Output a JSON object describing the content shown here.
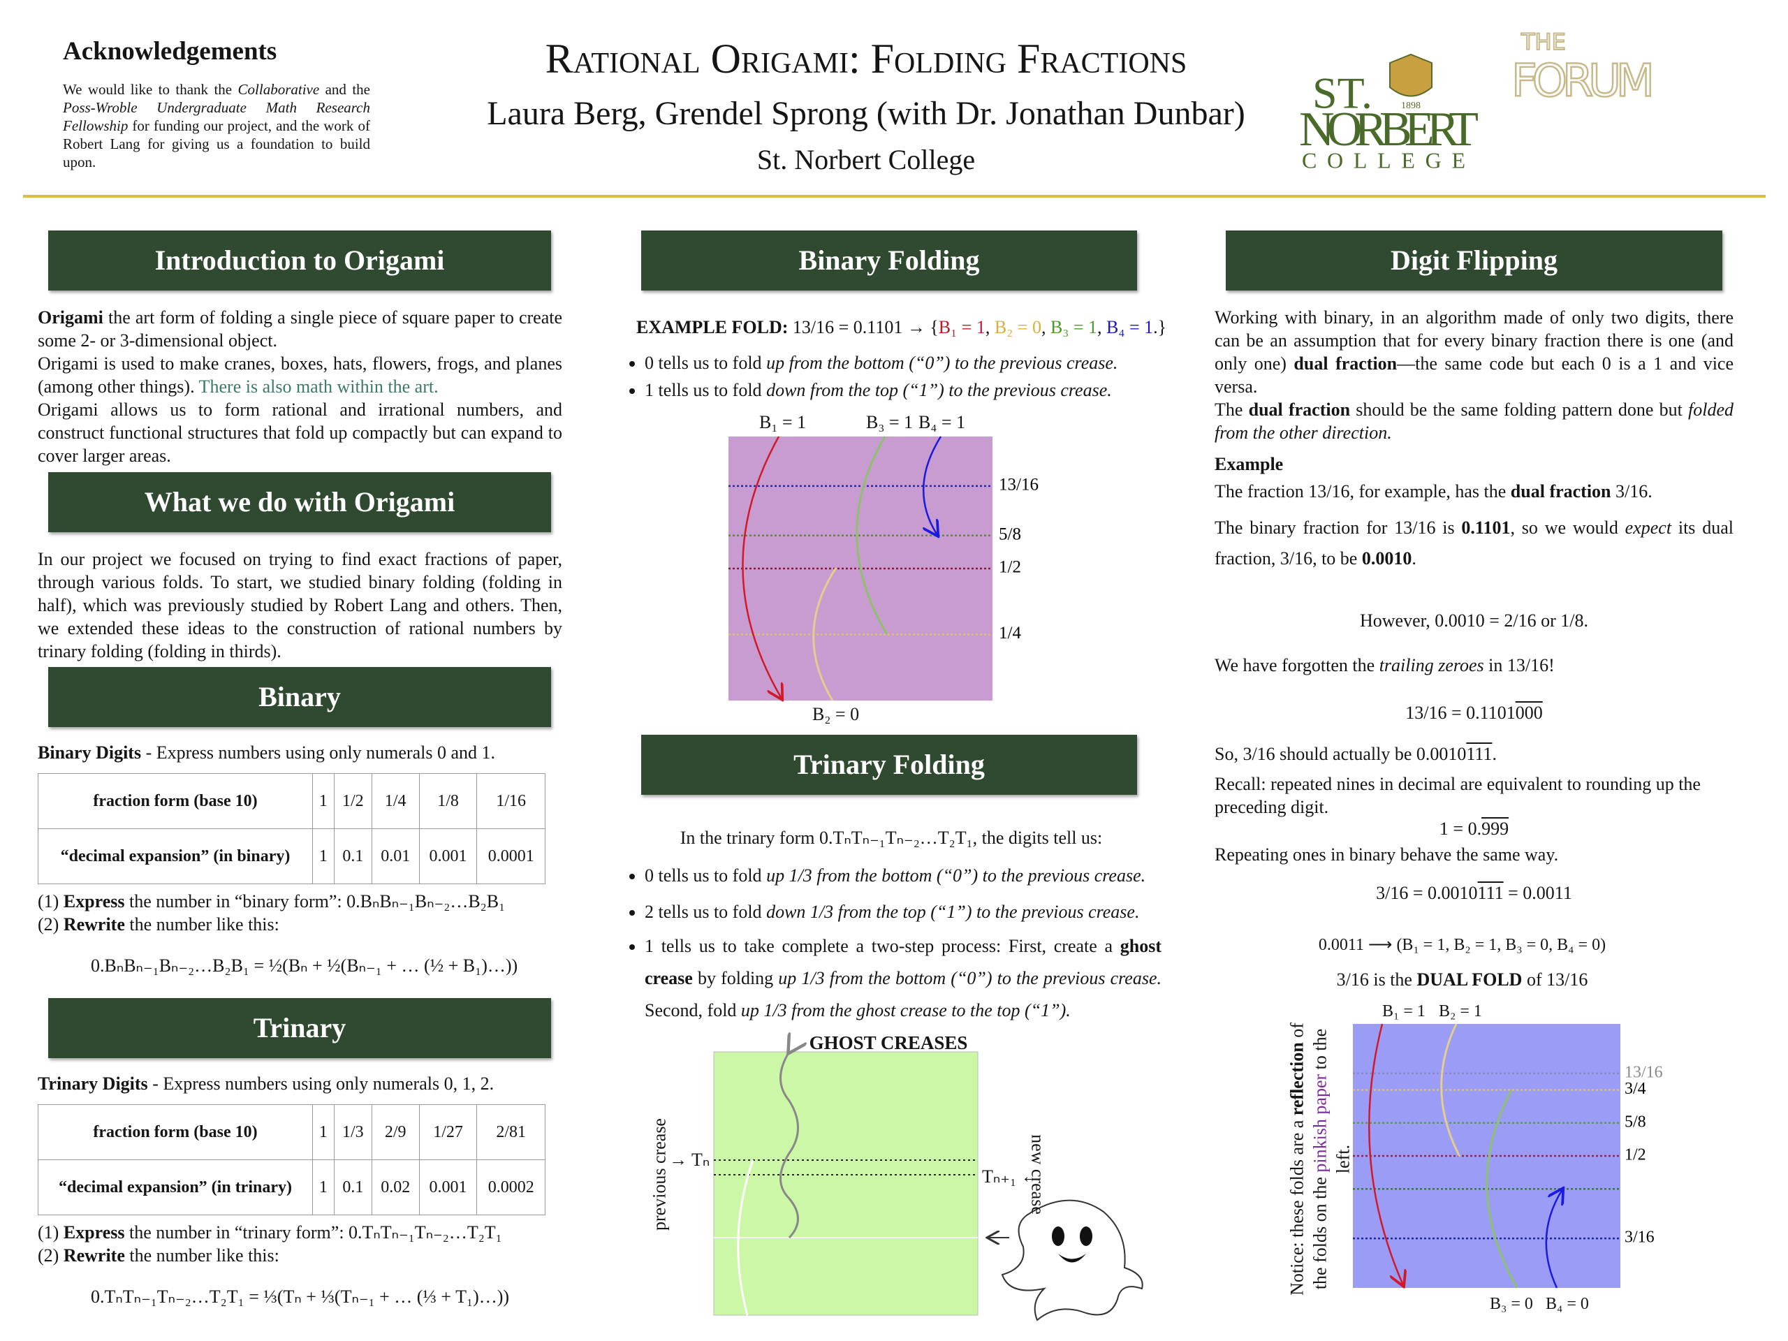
{
  "header": {
    "ack_title": "Acknowledgements",
    "ack_text": [
      "We would like to thank the ",
      "Collaborative",
      " and the ",
      "Poss-Wroble Undergraduate Math Research Fellowship",
      " for funding our project, and the work of Robert Lang for giving us a foundation to build upon."
    ],
    "title": "Rational Origami: Folding Fractions",
    "authors": "Laura Berg, Grendel Sprong (with Dr. Jonathan Dunbar)",
    "college": "St. Norbert College",
    "logo": {
      "st": "ST.",
      "norbert": "NORBERT",
      "college": "COLLEGE",
      "year": "1898",
      "forum_the": "THE",
      "forum": "FORUM"
    }
  },
  "intro": {
    "heading": "Introduction to Origami",
    "p1_bold": "Origami",
    "p1": " the art form of folding a single piece of square paper to create some 2- or 3-dimensional object.",
    "p2": "Origami is used to make cranes, boxes, hats, flowers, frogs, and planes (among other things). ",
    "p2_highlight": "There is also math within the art.",
    "p3": "Origami allows us to form rational and irrational numbers, and construct functional structures that fold up compactly but can expand to cover larger areas."
  },
  "what": {
    "heading": "What we do with Origami",
    "text": "In our project we focused on trying to find exact fractions of paper, through various folds. To start, we studied binary folding (folding in half), which was previously studied by Robert Lang and others. Then, we extended these ideas to the construction of rational numbers by trinary folding (folding in thirds)."
  },
  "binary": {
    "heading": "Binary",
    "lead_bold": "Binary Digits",
    "lead": " - Express numbers using only numerals 0 and 1.",
    "table": {
      "rows": [
        [
          "fraction form (base 10)",
          "1",
          "1/2",
          "1/4",
          "1/8",
          "1/16"
        ],
        [
          "“decimal expansion” (in binary)",
          "1",
          "0.1",
          "0.01",
          "0.001",
          "0.0001"
        ]
      ]
    },
    "step1_num": "(1) ",
    "step1_bold": "Express",
    "step1": " the number in “binary form”: 0.BₙBₙ₋₁Bₙ₋₂…B₂B₁",
    "step2_num": "(2) ",
    "step2_bold": "Rewrite",
    "step2": " the number like this:",
    "formula": "0.BₙBₙ₋₁Bₙ₋₂…B₂B₁ = ½(Bₙ + ½(Bₙ₋₁ + … (½ + B₁)…))"
  },
  "trinary": {
    "heading": "Trinary",
    "lead_bold": "Trinary Digits",
    "lead": " - Express numbers using only numerals 0, 1, 2.",
    "table": {
      "rows": [
        [
          "fraction form (base 10)",
          "1",
          "1/3",
          "2/9",
          "1/27",
          "2/81"
        ],
        [
          "“decimal expansion” (in trinary)",
          "1",
          "0.1",
          "0.02",
          "0.001",
          "0.0002"
        ]
      ]
    },
    "step1_num": "(1) ",
    "step1_bold": "Express",
    "step1": " the number in “trinary form”: 0.TₙTₙ₋₁Tₙ₋₂…T₂T₁",
    "step2_num": "(2) ",
    "step2_bold": "Rewrite",
    "step2": " the number like this:",
    "formula": "0.TₙTₙ₋₁Tₙ₋₂…T₂T₁ = ⅓(Tₙ + ⅓(Tₙ₋₁ + … (⅓ + T₁)…))"
  },
  "binary_folding": {
    "heading": "Binary Folding",
    "example_label": "EXAMPLE FOLD:",
    "example_pre": " 13/16 = 0.1101 → {",
    "example_items": [
      "B₁ = 1",
      "B₂ = 0",
      "B₃ = 1",
      "B₄ = 1"
    ],
    "example_sep": ", ",
    "example_post": ".}",
    "bullets": [
      [
        "0 tells us to fold ",
        "up from the bottom (“0”) to the previous crease."
      ],
      [
        "1 tells us to fold ",
        "down from the top (“1”) to the previous crease."
      ]
    ],
    "diagram": {
      "top_labels": [
        "B₁ = 1",
        "B₃ = 1",
        "B₄ = 1"
      ],
      "bottom_label": "B₂ = 0",
      "creases": [
        {
          "value": 0.8125,
          "label": "13/16",
          "color": "#2a2aa8"
        },
        {
          "value": 0.625,
          "label": "5/8",
          "color": "#5a8a3a"
        },
        {
          "value": 0.5,
          "label": "1/2",
          "color": "#8a1a3a"
        },
        {
          "value": 0.25,
          "label": "1/4",
          "color": "#d8c070"
        }
      ]
    }
  },
  "trinary_folding": {
    "heading": "Trinary Folding",
    "intro": "In the trinary form 0.TₙTₙ₋₁Tₙ₋₂…T₂T₁, the digits tell us:",
    "bullet0": [
      "0 tells us to fold ",
      "up 1/3 from the bottom (“0”) to the previous crease."
    ],
    "bullet2": [
      "2 tells us to fold ",
      "down 1/3 from the top (“1”) to the previous crease."
    ],
    "bullet1": [
      "1 tells us to take complete a two-step process: First, create a ",
      "ghost crease",
      " by folding ",
      "up 1/3 from the bottom (“0”) to the previous crease.",
      " Second, fold ",
      "up 1/3 from the ghost crease to the top (“1”)."
    ],
    "ghost_title": "GHOST CREASES",
    "previous": "previous crease",
    "tn": "→ Tₙ",
    "tn1": "Tₙ₊₁ ←",
    "new": "new crease"
  },
  "digit_flipping": {
    "heading": "Digit Flipping",
    "p1": [
      "Working with binary, in an algorithm made of only two digits, there can be an assumption that for every binary fraction there is one (and only one) ",
      "dual fraction",
      "—the same code but each 0 is a 1 and vice versa."
    ],
    "p2": [
      "The ",
      "dual fraction",
      " should be the same folding pattern done but ",
      "folded from the other direction."
    ],
    "example": "Example",
    "ex1": [
      "The fraction 13/16, for example, has the ",
      "dual fraction",
      " 3/16."
    ],
    "ex2": [
      "The binary fraction for 13/16 is ",
      "0.1101",
      ", so we would ",
      "expect",
      " its dual fraction, 3/16, to be ",
      "0.0010",
      "."
    ],
    "however": "However, 0.0010 = 2/16 or 1/8.",
    "forgot": [
      "We have forgotten the ",
      "trailing zeroes",
      " in 13/16!"
    ],
    "eq1": [
      "13/16 = 0.1101",
      "000"
    ],
    "so": [
      "So, 3/16 should actually be 0.0010",
      "111",
      "."
    ],
    "recall": "Recall: repeated nines in decimal are equivalent to rounding up the preceding digit.",
    "nines": [
      "1 = 0.",
      "999"
    ],
    "repeating": "Repeating ones in binary behave the same way.",
    "eq2": [
      "3/16 = 0.0010",
      "111",
      " = 0.0011"
    ],
    "mapping": "0.0011 ⟶ (B₁ = 1,  B₂ = 1,  B₃ = 0,  B₄ = 0)",
    "dual": [
      "3/16 is the ",
      "DUAL FOLD",
      " of 13/16"
    ],
    "notice": [
      "Notice: these folds are a ",
      "reflection",
      " of the folds on the ",
      "pinkish paper",
      " to the left."
    ],
    "diagram": {
      "top_labels": [
        "B₁ = 1",
        "B₂ = 1"
      ],
      "bottom_labels": [
        "B₃ = 0",
        "B₄ = 0"
      ],
      "creases": [
        {
          "value": 0.8125,
          "label": "13/16",
          "color": "#8a8ac8"
        },
        {
          "value": 0.75,
          "label": "3/4",
          "color": "#d8c070"
        },
        {
          "value": 0.625,
          "label": "5/8",
          "color": "#5a9a5a"
        },
        {
          "value": 0.5,
          "label": "1/2",
          "color": "#b01a3a"
        },
        {
          "value": 0.375,
          "color": "#3a7a3a"
        },
        {
          "value": 0.1875,
          "label": "3/16",
          "color": "#1a2a9a"
        }
      ]
    }
  }
}
